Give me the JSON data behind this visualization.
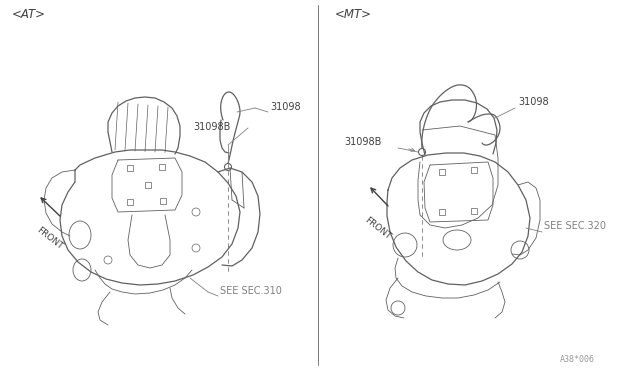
{
  "background_color": "#ffffff",
  "line_color": "#606060",
  "text_color": "#404040",
  "label_color": "#808080",
  "left_label": "<AT>",
  "right_label": "<MT>",
  "watermark": "A38*006",
  "parts_left": {
    "part_31098B": "31098B",
    "part_31098": "31098",
    "see_sec": "SEE SEC.310"
  },
  "parts_right": {
    "part_31098B": "31098B",
    "part_31098": "31098",
    "see_sec": "SEE SEC.320"
  }
}
